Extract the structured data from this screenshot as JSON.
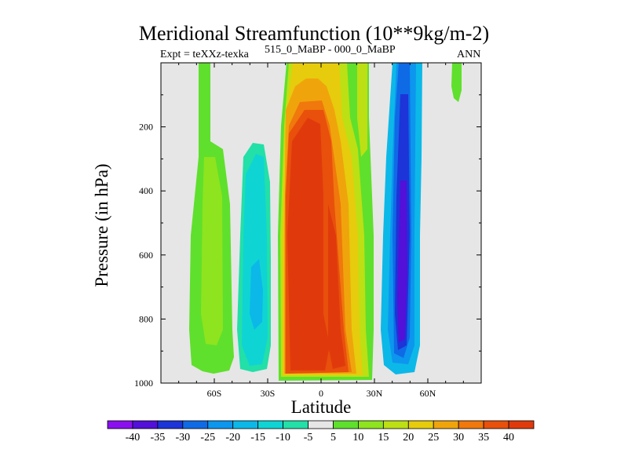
{
  "chart_data": {
    "type": "heatmap",
    "title": "Meridional Streamfunction (10**9kg/m-2)",
    "subtitle_left": "Expt = teXXz-texka",
    "subtitle_center": "515_0_MaBP - 000_0_MaBP",
    "subtitle_right": "ANN",
    "xlabel": "Latitude",
    "ylabel": "Pressure (in hPa)",
    "x_range": [
      -90,
      90
    ],
    "y_range": [
      0,
      1000
    ],
    "y_inverted": true,
    "x_ticks": [
      {
        "value": -60,
        "label": "60S"
      },
      {
        "value": -30,
        "label": "30S"
      },
      {
        "value": 0,
        "label": "0"
      },
      {
        "value": 30,
        "label": "30N"
      },
      {
        "value": 60,
        "label": "60N"
      }
    ],
    "y_ticks": [
      {
        "value": 200,
        "label": "200"
      },
      {
        "value": 400,
        "label": "400"
      },
      {
        "value": 600,
        "label": "600"
      },
      {
        "value": 800,
        "label": "800"
      },
      {
        "value": 1000,
        "label": "1000"
      }
    ],
    "colorbar": {
      "labels": [
        "-40",
        "-35",
        "-30",
        "-25",
        "-20",
        "-15",
        "-10",
        "-5",
        "5",
        "10",
        "15",
        "20",
        "25",
        "30",
        "35",
        "40"
      ],
      "colors": [
        "#8a10f0",
        "#5210d8",
        "#1c34d8",
        "#0f6ae6",
        "#0c96ee",
        "#0cb8e8",
        "#0fd4d4",
        "#22e0a8",
        "#e6e6e6",
        "#5fe02c",
        "#8ee41e",
        "#bce014",
        "#e6cc0c",
        "#f0a40c",
        "#f0780c",
        "#e8500c",
        "#e03a0c"
      ]
    },
    "features": [
      {
        "name": "Tropical positive cell",
        "value_range": [
          35,
          45
        ],
        "lat_range": [
          -17,
          12
        ],
        "p_range": [
          140,
          990
        ]
      },
      {
        "name": "Northern negative cell",
        "value_range": [
          -35,
          -25
        ],
        "lat_range": [
          33,
          57
        ],
        "p_range": [
          0,
          990
        ]
      },
      {
        "name": "Southern negative cell",
        "value_range": [
          -20,
          -10
        ],
        "lat_range": [
          -47,
          -33
        ],
        "p_range": [
          250,
          970
        ]
      },
      {
        "name": "Southern high-latitude positive band",
        "value_range": [
          5,
          15
        ],
        "lat_range": [
          -75,
          -50
        ],
        "p_range": [
          0,
          970
        ]
      },
      {
        "name": "Arctic positive patch",
        "value_range": [
          5,
          10
        ],
        "lat_range": [
          72,
          78
        ],
        "p_range": [
          0,
          100
        ]
      }
    ]
  }
}
